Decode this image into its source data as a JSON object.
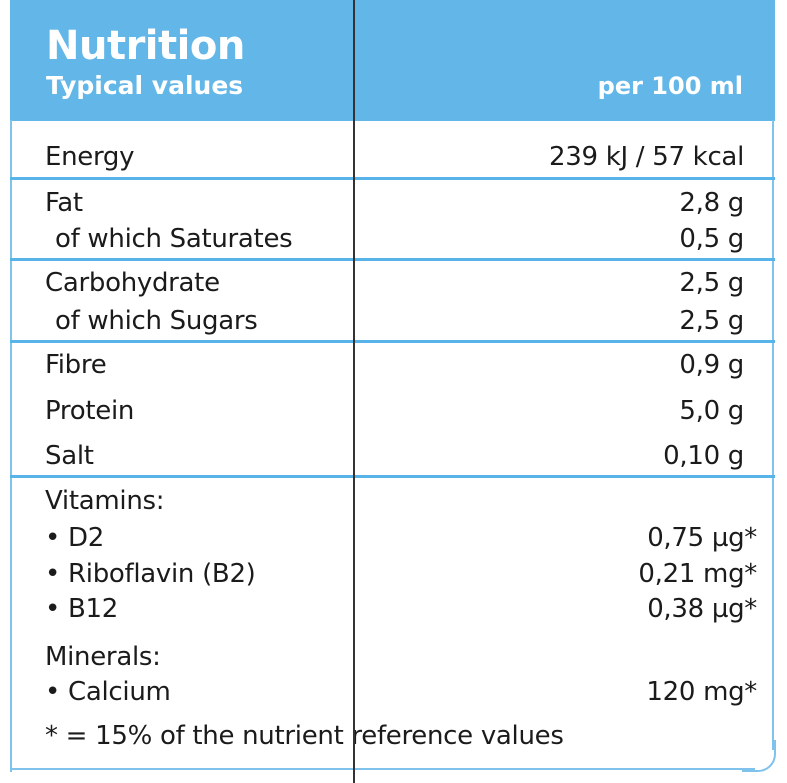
{
  "header": {
    "title": "Nutrition",
    "subtitle": "Typical values",
    "column": "per 100 ml"
  },
  "rows": [
    {
      "label": "Energy",
      "value": "239 kJ / 57 kcal"
    },
    {
      "label": "Fat",
      "value": "2,8 g"
    },
    {
      "label": "of which Saturates",
      "value": "0,5 g"
    },
    {
      "label": "Carbohydrate",
      "value": "2,5 g"
    },
    {
      "label": "of which Sugars",
      "value": "2,5 g"
    },
    {
      "label": "Fibre",
      "value": "0,9 g"
    },
    {
      "label": "Protein",
      "value": "5,0 g"
    },
    {
      "label": "Salt",
      "value": "0,10 g"
    }
  ],
  "vitamins": {
    "heading": "Vitamins:",
    "items": [
      {
        "label": "• D2",
        "value": "0,75 µg*"
      },
      {
        "label": "• Riboflavin (B2)",
        "value": "0,21 mg*"
      },
      {
        "label": "• B12",
        "value": "0,38 µg*"
      }
    ]
  },
  "minerals": {
    "heading": "Minerals:",
    "items": [
      {
        "label": "• Calcium",
        "value": "120 mg*"
      }
    ]
  },
  "footnote": "* = 15% of the nutrient reference values",
  "colors": {
    "header_bg": "#63b7e8",
    "divider": "#58b3e8",
    "text": "#1b1b1b"
  }
}
